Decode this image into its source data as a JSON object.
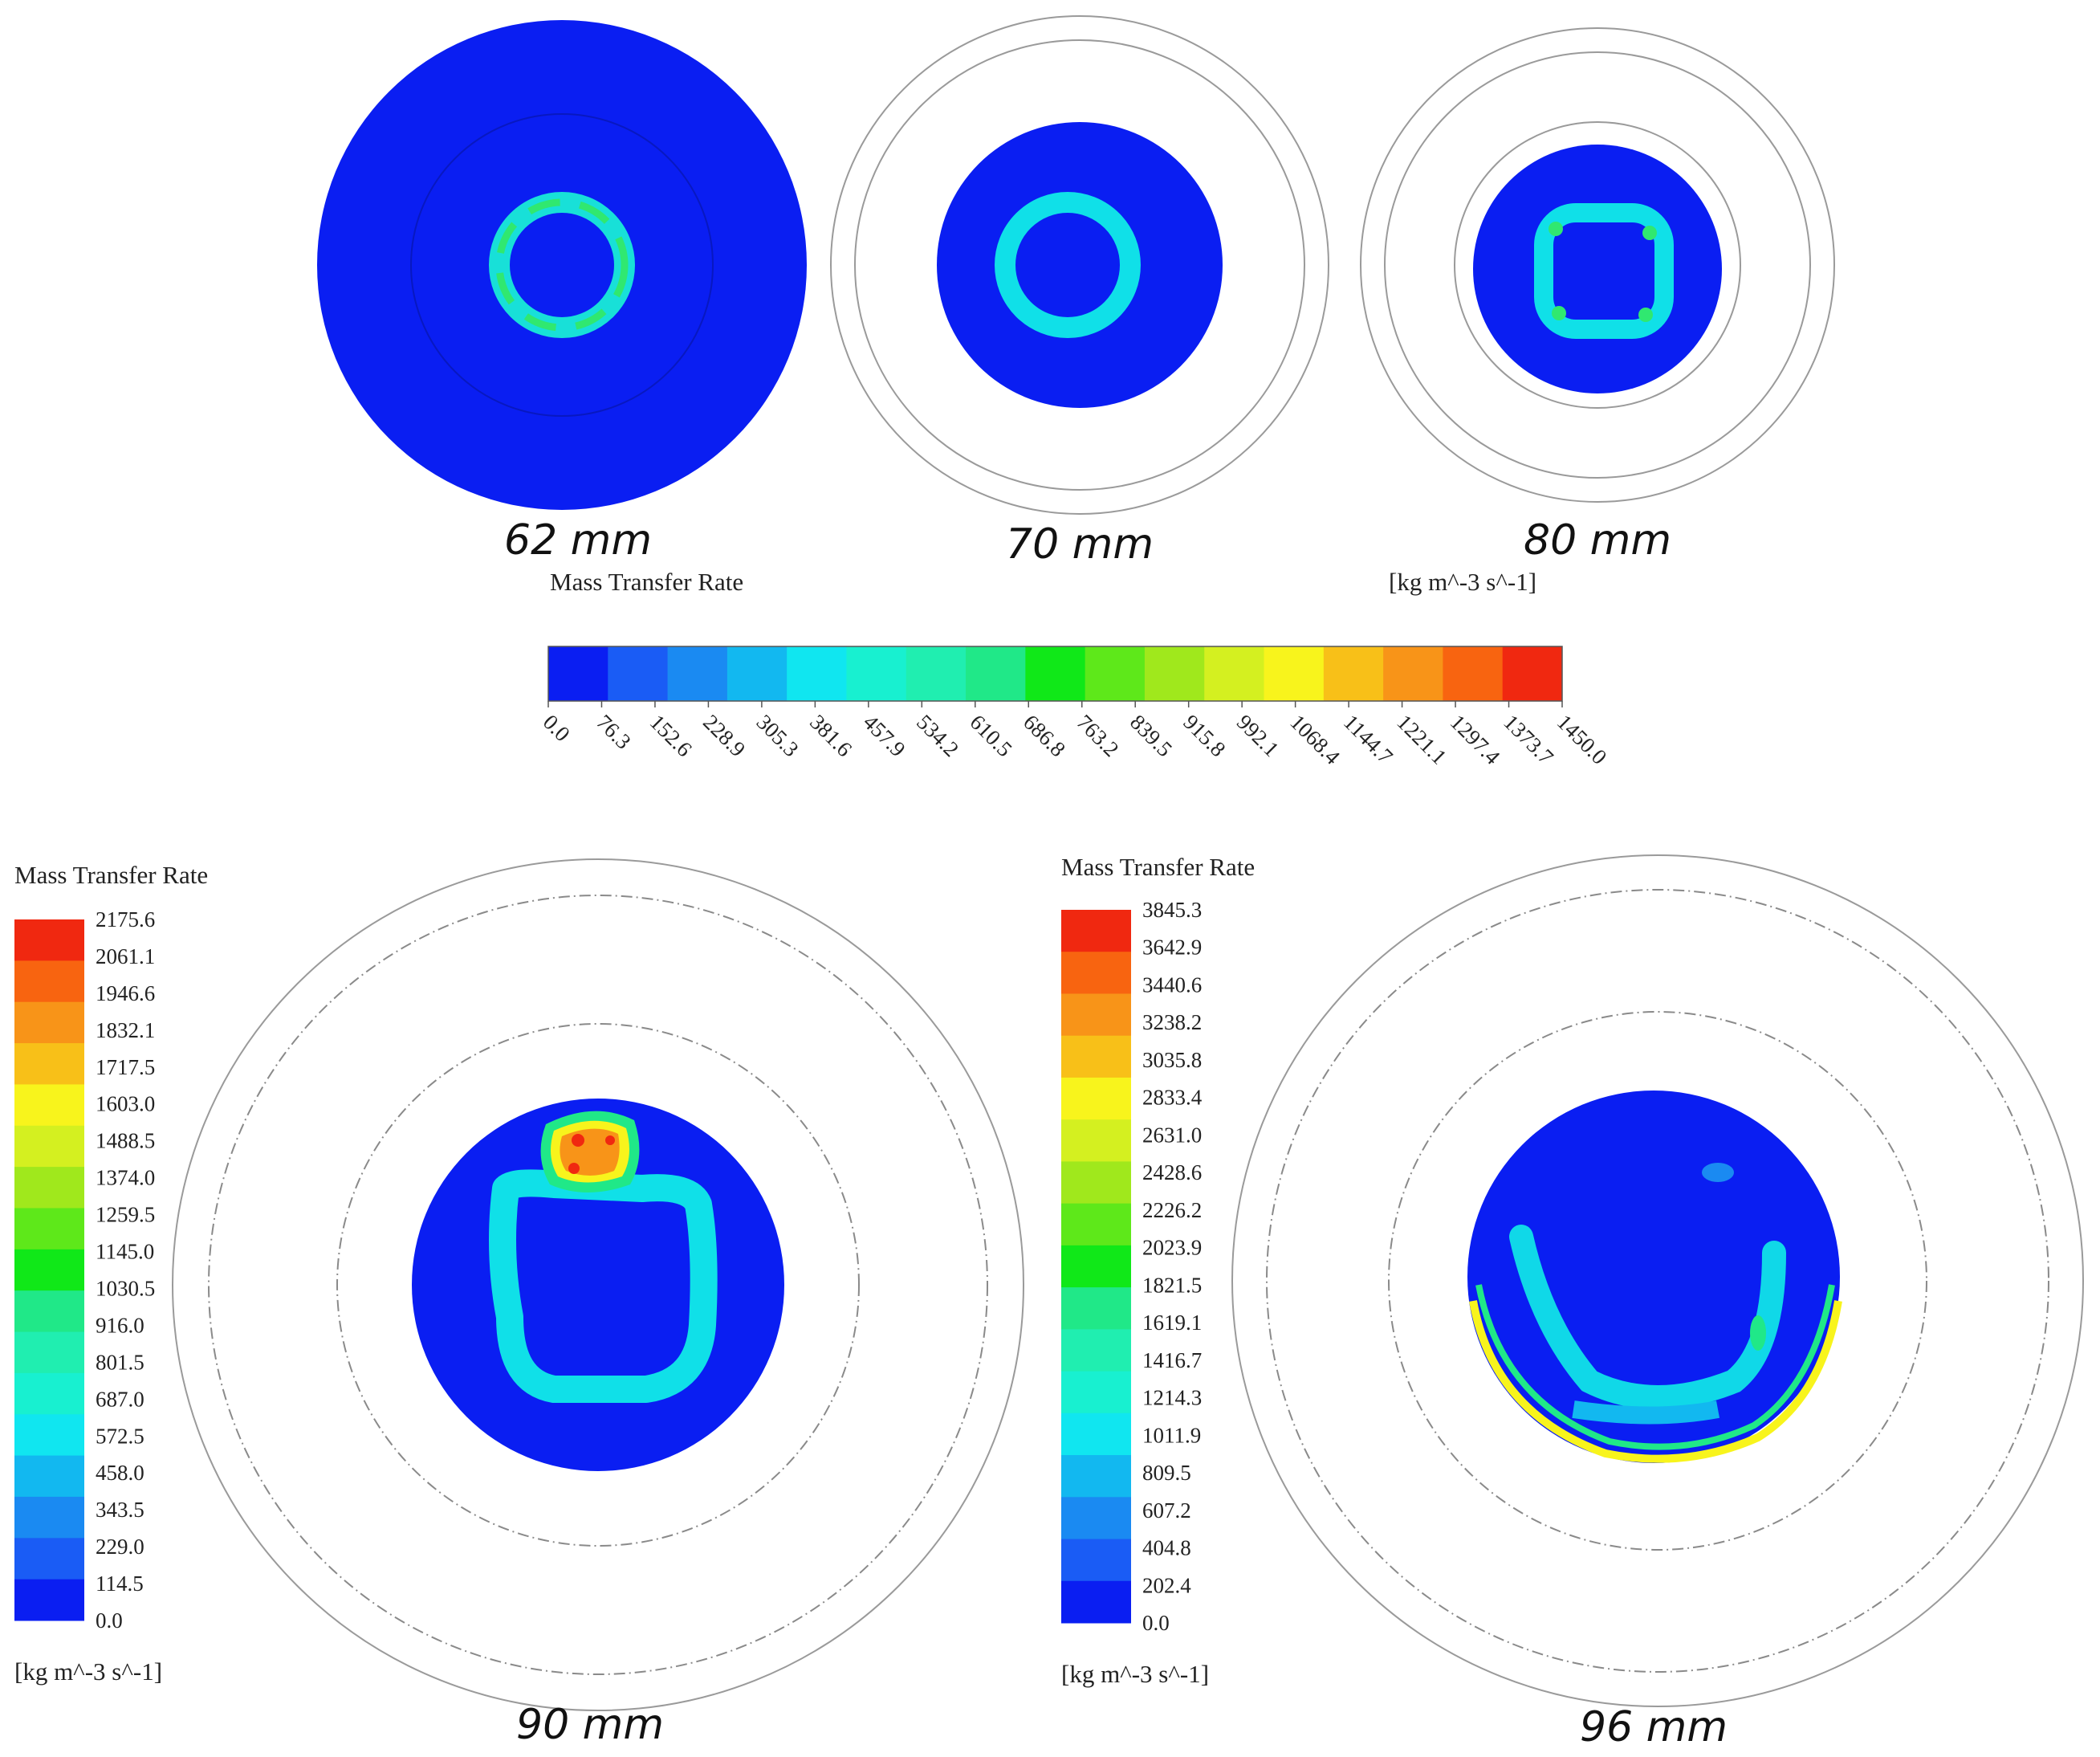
{
  "panels": [
    {
      "label": "62 mm"
    },
    {
      "label": "70 mm"
    },
    {
      "label": "80 mm"
    },
    {
      "label": "90 mm"
    },
    {
      "label": "96 mm"
    }
  ],
  "colorbar_top": {
    "title": "Mass Transfer Rate",
    "unit": "[kg m^-3 s^-1]",
    "ticks": [
      "0.0",
      "76.3",
      "152.6",
      "228.9",
      "305.3",
      "381.6",
      "457.9",
      "534.2",
      "610.5",
      "686.8",
      "763.2",
      "839.5",
      "915.8",
      "992.1",
      "1068.4",
      "1144.7",
      "1221.1",
      "1297.4",
      "1373.7",
      "1450.0"
    ]
  },
  "colorbar_90": {
    "title": "Mass Transfer Rate",
    "unit": "[kg m^-3 s^-1]",
    "ticks": [
      "2175.6",
      "2061.1",
      "1946.6",
      "1832.1",
      "1717.5",
      "1603.0",
      "1488.5",
      "1374.0",
      "1259.5",
      "1145.0",
      "1030.5",
      "916.0",
      "801.5",
      "687.0",
      "572.5",
      "458.0",
      "343.5",
      "229.0",
      "114.5",
      "0.0"
    ]
  },
  "colorbar_96": {
    "title": "Mass Transfer Rate",
    "unit": "[kg m^-3 s^-1]",
    "ticks": [
      "3845.3",
      "3642.9",
      "3440.6",
      "3238.2",
      "3035.8",
      "2833.4",
      "2631.0",
      "2428.6",
      "2226.2",
      "2023.9",
      "1821.5",
      "1619.1",
      "1416.7",
      "1214.3",
      "1011.9",
      "809.5",
      "607.2",
      "404.8",
      "202.4",
      "0.0"
    ]
  },
  "colors": {
    "scale": [
      "#0a1ef2",
      "#1a5cf5",
      "#1a8af2",
      "#12b8f0",
      "#10e6f0",
      "#18f0d0",
      "#20eeb0",
      "#20e888",
      "#10e818",
      "#5ee81a",
      "#a0e81c",
      "#d4f020",
      "#f8f41c",
      "#f8c018",
      "#f89418",
      "#f86410",
      "#f02810"
    ]
  }
}
